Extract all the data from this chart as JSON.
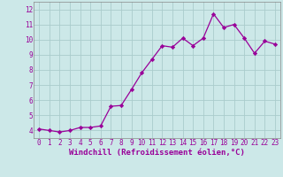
{
  "x": [
    0,
    1,
    2,
    3,
    4,
    5,
    6,
    7,
    8,
    9,
    10,
    11,
    12,
    13,
    14,
    15,
    16,
    17,
    18,
    19,
    20,
    21,
    22,
    23
  ],
  "y": [
    4.1,
    4.0,
    3.9,
    4.0,
    4.2,
    4.2,
    4.3,
    5.6,
    5.65,
    6.7,
    7.8,
    8.7,
    9.6,
    9.5,
    10.1,
    9.6,
    10.1,
    11.7,
    10.8,
    11.0,
    10.1,
    9.1,
    9.9,
    9.7
  ],
  "line_color": "#990099",
  "marker": "D",
  "markersize": 2.2,
  "linewidth": 0.9,
  "xlabel": "Windchill (Refroidissement éolien,°C)",
  "ylim": [
    3.5,
    12.5
  ],
  "xlim": [
    -0.5,
    23.5
  ],
  "yticks": [
    4,
    5,
    6,
    7,
    8,
    9,
    10,
    11,
    12
  ],
  "xticks": [
    0,
    1,
    2,
    3,
    4,
    5,
    6,
    7,
    8,
    9,
    10,
    11,
    12,
    13,
    14,
    15,
    16,
    17,
    18,
    19,
    20,
    21,
    22,
    23
  ],
  "xtick_labels": [
    "0",
    "1",
    "2",
    "3",
    "4",
    "5",
    "6",
    "7",
    "8",
    "9",
    "10",
    "11",
    "12",
    "13",
    "14",
    "15",
    "16",
    "17",
    "18",
    "19",
    "20",
    "21",
    "22",
    "23"
  ],
  "bg_color": "#cce8e8",
  "grid_color": "#aacccc",
  "tick_fontsize": 5.5,
  "xlabel_fontsize": 6.5,
  "xlabel_color": "#990099",
  "tick_color": "#990099",
  "spine_color": "#888888"
}
